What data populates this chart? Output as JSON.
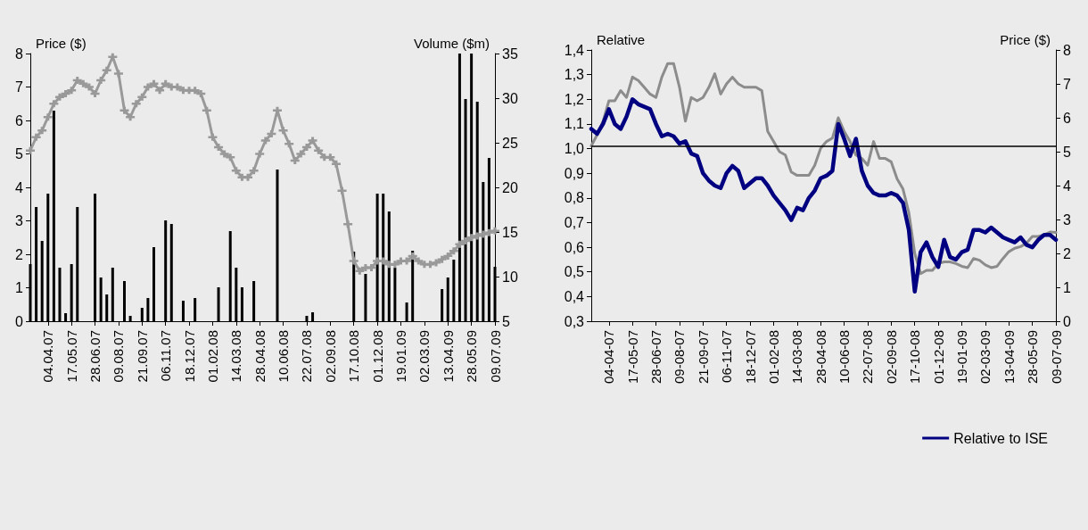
{
  "chart_data": [
    {
      "type": "line",
      "categories": [
        null,
        null,
        null,
        "04.04.07",
        null,
        null,
        null,
        "17.05.07",
        null,
        null,
        null,
        "28.06.07",
        null,
        null,
        null,
        "09.08.07",
        null,
        null,
        null,
        "21.09.07",
        null,
        null,
        null,
        "06.11.07",
        null,
        null,
        null,
        "18.12.07",
        null,
        null,
        null,
        "01.02.08",
        null,
        null,
        null,
        "14.03.08",
        null,
        null,
        null,
        "28.04.08",
        null,
        null,
        null,
        "10.06.08",
        null,
        null,
        null,
        "22.07.08",
        null,
        null,
        null,
        "02.09.08",
        null,
        null,
        null,
        "17.10.08",
        null,
        null,
        null,
        "01.12.08",
        null,
        null,
        null,
        "19.01.09",
        null,
        null,
        null,
        "02.03.09",
        null,
        null,
        null,
        "13.04.09",
        null,
        null,
        null,
        "28.05.09",
        null,
        null,
        null,
        "09.07.09"
      ],
      "series": [
        {
          "color": "#999999",
          "values": [
            5.1,
            5.5,
            5.7,
            6.1,
            6.5,
            6.7,
            6.8,
            6.9,
            7.2,
            7.1,
            7.0,
            6.8,
            7.2,
            7.5,
            7.9,
            7.4,
            6.3,
            6.1,
            6.5,
            6.7,
            7.0,
            7.1,
            6.9,
            7.1,
            7.0,
            7.0,
            6.9,
            6.9,
            6.9,
            6.8,
            6.3,
            5.5,
            5.2,
            5.0,
            4.9,
            4.5,
            4.3,
            4.3,
            4.5,
            5.0,
            5.4,
            5.6,
            6.3,
            5.7,
            5.3,
            4.8,
            5.0,
            5.2,
            5.4,
            5.1,
            4.9,
            4.9,
            4.7,
            3.9,
            2.9,
            1.8,
            1.5,
            1.6,
            1.6,
            1.8,
            1.8,
            1.7,
            1.7,
            1.8,
            1.8,
            1.95,
            1.8,
            1.7,
            1.7,
            1.75,
            1.85,
            1.95,
            2.1,
            2.3,
            2.4,
            2.5,
            2.55,
            2.6,
            2.65,
            2.7
          ]
        },
        {
          "type": "bar",
          "axis": "y2",
          "color": "#000000",
          "values": [
            11.4,
            17.8,
            14,
            19.3,
            28.6,
            11,
            5.9,
            11.4,
            17.8,
            null,
            null,
            19.3,
            9.9,
            8,
            11,
            null,
            9.5,
            5.6,
            null,
            6.5,
            7.6,
            13.3,
            null,
            16.3,
            15.9,
            null,
            7.3,
            null,
            7.6,
            null,
            null,
            null,
            8.8,
            null,
            15.1,
            11,
            8.8,
            null,
            9.5,
            null,
            null,
            null,
            22,
            null,
            null,
            null,
            null,
            5.6,
            6,
            null,
            null,
            null,
            null,
            null,
            null,
            12.8,
            null,
            10.3,
            null,
            19.3,
            19.3,
            17.3,
            11,
            null,
            7.1,
            12.9,
            null,
            null,
            null,
            null,
            8.6,
            9.9,
            11.9,
            35,
            29.9,
            35,
            29.6,
            20.6,
            23.3,
            11.1
          ]
        }
      ],
      "ylabel": "Price ($)",
      "y2label": "Volume ($m)",
      "ylim": [
        0,
        8
      ],
      "yticks": [
        0,
        1,
        2,
        3,
        4,
        5,
        6,
        7,
        8
      ],
      "y2lim": [
        5,
        35
      ],
      "y2ticks": [
        5,
        10,
        15,
        20,
        25,
        30,
        35
      ],
      "grid": false,
      "legend": false,
      "marker": "cross"
    },
    {
      "type": "line",
      "categories": [
        null,
        null,
        null,
        "04-04-07",
        null,
        null,
        null,
        "17-05-07",
        null,
        null,
        null,
        "28-06-07",
        null,
        null,
        null,
        "09-08-07",
        null,
        null,
        null,
        "21-09-07",
        null,
        null,
        null,
        "06-11-07",
        null,
        null,
        null,
        "18-12-07",
        null,
        null,
        null,
        "01-02-08",
        null,
        null,
        null,
        "14-03-08",
        null,
        null,
        null,
        "28-04-08",
        null,
        null,
        null,
        "10-06-08",
        null,
        null,
        null,
        "22-07-08",
        null,
        null,
        null,
        "02-09-08",
        null,
        null,
        null,
        "17-10-08",
        null,
        null,
        null,
        "01-12-08",
        null,
        null,
        null,
        "19-01-09",
        null,
        null,
        null,
        "02-03-09",
        null,
        null,
        null,
        "13-04-09",
        null,
        null,
        null,
        "28-05-09",
        null,
        null,
        null,
        "09-07-09"
      ],
      "series": [
        {
          "axis": "y2",
          "color": "#8c8c8c",
          "values": [
            5.17,
            5.5,
            5.9,
            6.5,
            6.5,
            6.8,
            6.6,
            7.2,
            7.1,
            6.9,
            6.7,
            6.6,
            7.2,
            7.6,
            7.6,
            6.9,
            5.9,
            6.6,
            6.5,
            6.6,
            6.9,
            7.3,
            6.7,
            7.0,
            7.2,
            7.0,
            6.9,
            6.9,
            6.9,
            6.8,
            5.6,
            5.3,
            5.0,
            4.9,
            4.4,
            4.3,
            4.3,
            4.3,
            4.6,
            5.1,
            5.3,
            5.4,
            6.0,
            5.6,
            5.3,
            4.9,
            4.8,
            4.6,
            5.3,
            4.8,
            4.8,
            4.7,
            4.2,
            3.9,
            3.2,
            2.0,
            1.4,
            1.5,
            1.5,
            1.7,
            1.75,
            1.75,
            1.7,
            1.62,
            1.58,
            1.85,
            1.8,
            1.66,
            1.58,
            1.62,
            1.85,
            2.05,
            2.15,
            2.2,
            2.3,
            2.5,
            2.5,
            2.55,
            2.63,
            2.62
          ]
        },
        {
          "name": "Relative to ISE",
          "color": "#000080",
          "values": [
            1.08,
            1.06,
            1.1,
            1.16,
            1.1,
            1.08,
            1.13,
            1.2,
            1.18,
            1.17,
            1.16,
            1.1,
            1.05,
            1.06,
            1.05,
            1.02,
            1.03,
            0.98,
            0.97,
            0.9,
            0.87,
            0.85,
            0.84,
            0.9,
            0.93,
            0.91,
            0.84,
            0.86,
            0.88,
            0.88,
            0.85,
            0.81,
            0.78,
            0.75,
            0.71,
            0.76,
            0.75,
            0.8,
            0.83,
            0.88,
            0.89,
            0.91,
            1.1,
            1.04,
            0.97,
            1.04,
            0.91,
            0.85,
            0.82,
            0.81,
            0.81,
            0.82,
            0.81,
            0.78,
            0.67,
            0.42,
            0.58,
            0.62,
            0.56,
            0.52,
            0.63,
            0.56,
            0.55,
            0.58,
            0.59,
            0.67,
            0.67,
            0.66,
            0.68,
            0.66,
            0.64,
            0.63,
            0.62,
            0.64,
            0.61,
            0.6,
            0.63,
            0.65,
            0.65,
            0.63
          ]
        }
      ],
      "ylabel": "Relative",
      "y2label": "Price ($)",
      "ylim": [
        0.3,
        1.4
      ],
      "yticks": [
        {
          "value": 0.3,
          "label": "0,3"
        },
        {
          "value": 0.4,
          "label": "0,4"
        },
        {
          "value": 0.5,
          "label": "0,5"
        },
        {
          "value": 0.6,
          "label": "0,6"
        },
        {
          "value": 0.7,
          "label": "0,7"
        },
        {
          "value": 0.8,
          "label": "0,8"
        },
        {
          "value": 0.9,
          "label": "0,9"
        },
        {
          "value": 1.0,
          "label": "1,0"
        },
        {
          "value": 1.1,
          "label": "1,1"
        },
        {
          "value": 1.2,
          "label": "1,2"
        },
        {
          "value": 1.3,
          "label": "1,3"
        },
        {
          "value": 1.4,
          "label": "1,4"
        }
      ],
      "y2lim": [
        0,
        8
      ],
      "y2ticks": [
        0,
        1,
        2,
        3,
        4,
        5,
        6,
        7,
        8
      ],
      "ref_lines": [
        {
          "axis": "y",
          "value": 1.01,
          "color": "#000000"
        }
      ],
      "grid": false,
      "legend": "bottom",
      "marker": "none"
    }
  ]
}
